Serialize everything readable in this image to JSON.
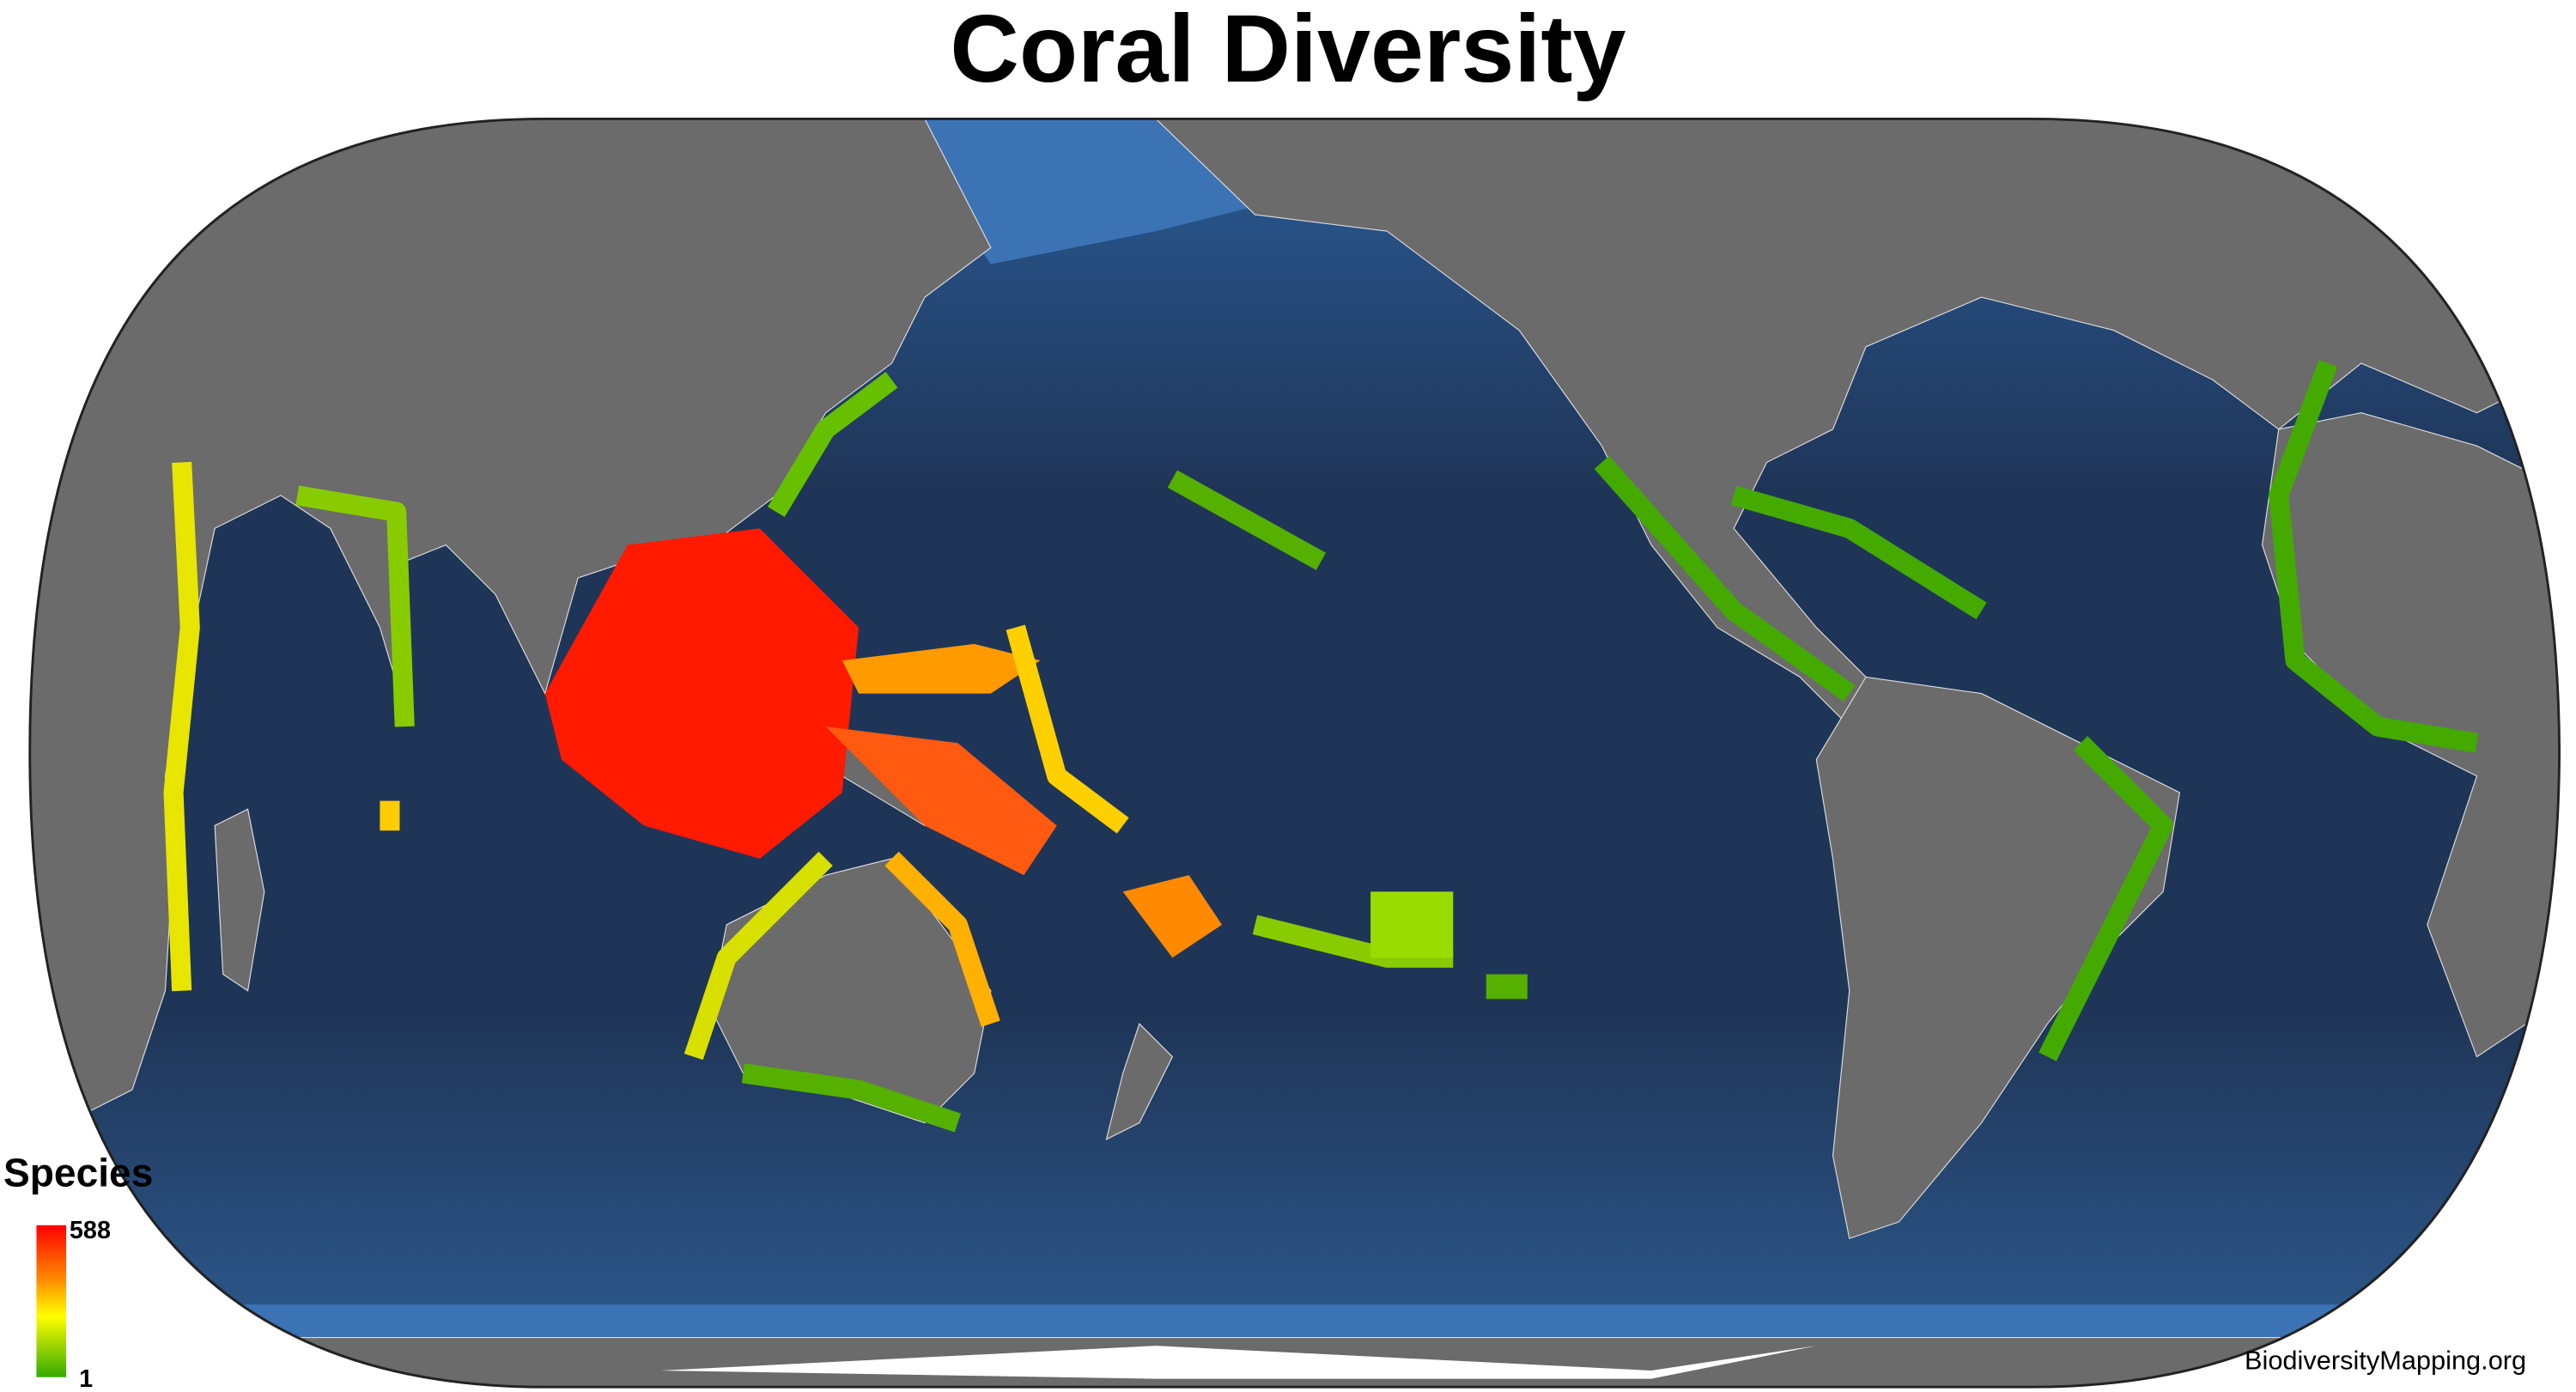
{
  "title": "Coral Diversity",
  "legend": {
    "title": "Species",
    "max": 588,
    "min": 1
  },
  "credit": "BiodiversityMapping.org"
}
